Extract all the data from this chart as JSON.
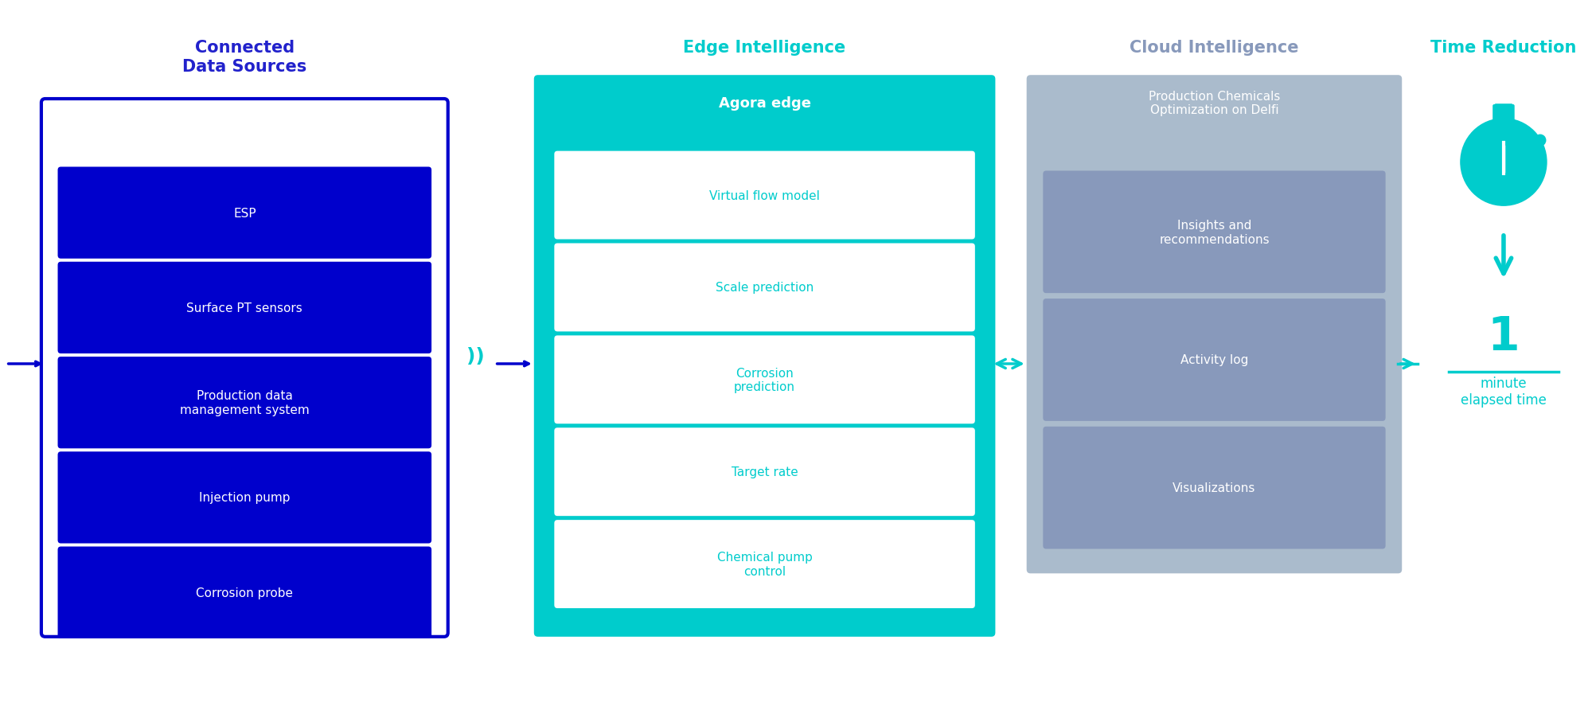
{
  "bg_color": "#ffffff",
  "title_color_blue": "#0000cc",
  "title_color_teal": "#00cccc",
  "title_color_gray": "#8888aa",
  "box_blue_dark": "#0000cc",
  "box_teal": "#00cccc",
  "box_gray": "#9999bb",
  "box_inner_blue": "#0000dd",
  "box_inner_teal_light": "#ffffff",
  "box_inner_gray": "#7777aa",
  "text_white": "#ffffff",
  "text_teal": "#00cccc",
  "text_gray": "#aaaacc",
  "arrow_teal": "#00cccc",
  "col1_title": "Connected\nData Sources",
  "col2_title": "Edge Intelligence",
  "col3_title": "Cloud Intelligence",
  "col4_title": "Time Reduction",
  "col1_items": [
    "ESP",
    "Surface PT sensors",
    "Production data\nmanagement system",
    "Injection pump",
    "Corrosion probe"
  ],
  "col1_header": "Agora edge",
  "col2_items": [
    "Virtual flow model",
    "Scale prediction",
    "Corrosion\nprediction",
    "Target rate",
    "Chemical pump\ncontrol"
  ],
  "col3_header": "Production Chemicals\nOptimization on Delfi",
  "col3_items": [
    "Insights and\nrecommendations",
    "Activity log",
    "Visualizations"
  ],
  "time_number": "1",
  "time_label": "minute\nelapsed time"
}
